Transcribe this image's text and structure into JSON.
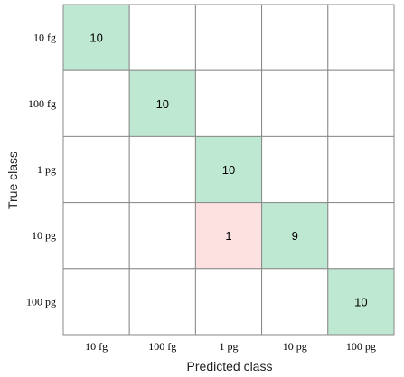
{
  "chart_data": {
    "type": "heatmap",
    "title": "",
    "xlabel": "Predicted class",
    "ylabel": "True class",
    "x_categories": [
      "10 fg",
      "100 fg",
      "1 pg",
      "10 pg",
      "100 pg"
    ],
    "y_categories": [
      "10 fg",
      "100 fg",
      "1 pg",
      "10 pg",
      "100 pg"
    ],
    "matrix": [
      [
        10,
        0,
        0,
        0,
        0
      ],
      [
        0,
        10,
        0,
        0,
        0
      ],
      [
        0,
        0,
        10,
        0,
        0
      ],
      [
        0,
        0,
        1,
        9,
        0
      ],
      [
        0,
        0,
        0,
        0,
        10
      ]
    ],
    "show_zero_values": false,
    "colors": {
      "correct": "#bfe8d3",
      "incorrect": "#fde1e1",
      "empty": "#ffffff",
      "grid": "#8a8a8a"
    }
  }
}
